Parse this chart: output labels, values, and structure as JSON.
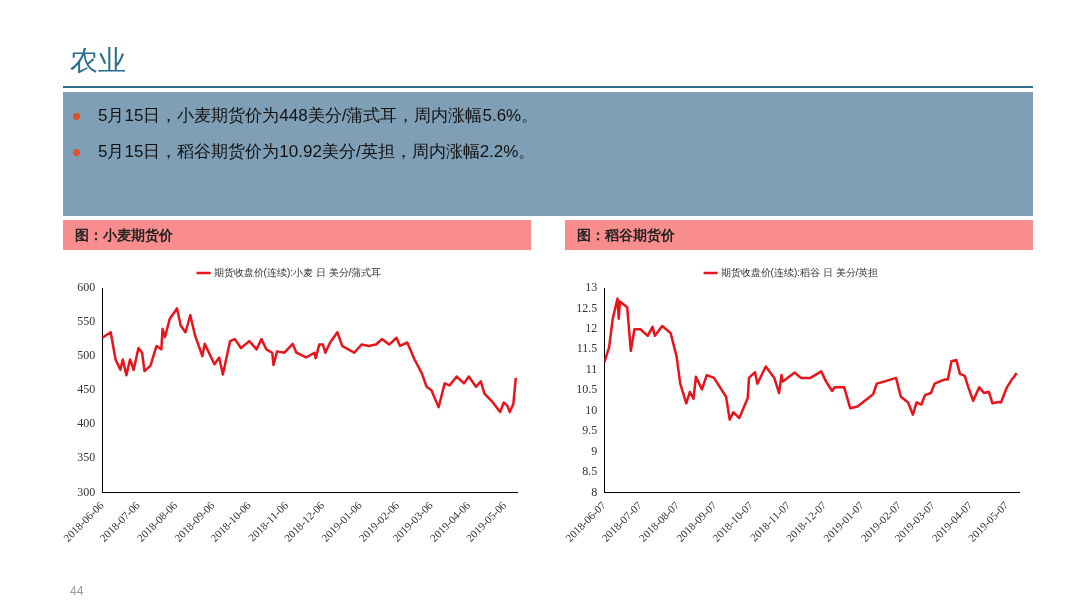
{
  "chart_data": [
    {
      "type": "other",
      "title": "农业",
      "annotations": [
        "5月15日，小麦期货价为448美分/蒲式耳，周内涨幅5.6%。",
        "5月15日，稻谷期货价为10.92美分/英担，周内涨幅2.2%。",
        "44"
      ]
    },
    {
      "type": "line",
      "title": "图：小麦期货价",
      "legend": "top",
      "grid": false,
      "xlim": [
        "2018-06-06",
        "2019-05-16"
      ],
      "xticks": [
        "2018-06-06",
        "2018-07-06",
        "2018-08-06",
        "2018-09-06",
        "2018-10-06",
        "2018-11-06",
        "2018-12-06",
        "2019-01-06",
        "2019-02-06",
        "2019-03-06",
        "2019-04-06",
        "2019-05-06"
      ],
      "ylim": [
        300,
        600
      ],
      "yticks": [
        300,
        350,
        400,
        450,
        500,
        550,
        600
      ],
      "series": [
        {
          "name": "期货收盘价(连续):小麦 日 美分/蒲式耳",
          "color": "#e8141c",
          "x": [
            "2018-06-06",
            "2018-06-13",
            "2018-06-17",
            "2018-06-21",
            "2018-06-23",
            "2018-06-26",
            "2018-06-29",
            "2018-07-02",
            "2018-07-06",
            "2018-07-09",
            "2018-07-11",
            "2018-07-16",
            "2018-07-21",
            "2018-07-25",
            "2018-07-26",
            "2018-07-28",
            "2018-08-01",
            "2018-08-07",
            "2018-08-10",
            "2018-08-14",
            "2018-08-18",
            "2018-08-22",
            "2018-08-28",
            "2018-08-30",
            "2018-09-07",
            "2018-09-11",
            "2018-09-14",
            "2018-09-20",
            "2018-09-24",
            "2018-09-29",
            "2018-10-06",
            "2018-10-12",
            "2018-10-16",
            "2018-10-20",
            "2018-10-25",
            "2018-10-26",
            "2018-10-29",
            "2018-11-04",
            "2018-11-11",
            "2018-11-14",
            "2018-11-22",
            "2018-11-29",
            "2018-11-30",
            "2018-12-03",
            "2018-12-06",
            "2018-12-08",
            "2018-12-12",
            "2018-12-18",
            "2018-12-22",
            "2019-01-01",
            "2019-01-07",
            "2019-01-13",
            "2019-01-19",
            "2019-01-24",
            "2019-01-30",
            "2019-02-05",
            "2019-02-08",
            "2019-02-14",
            "2019-02-20",
            "2019-02-26",
            "2019-03-02",
            "2019-03-06",
            "2019-03-12",
            "2019-03-17",
            "2019-03-21",
            "2019-03-27",
            "2019-04-02",
            "2019-04-06",
            "2019-04-12",
            "2019-04-16",
            "2019-04-19",
            "2019-04-26",
            "2019-05-02",
            "2019-05-05",
            "2019-05-08",
            "2019-05-10",
            "2019-05-13",
            "2019-05-15"
          ],
          "values": [
            527,
            535,
            495,
            480,
            495,
            472,
            495,
            480,
            512,
            505,
            478,
            486,
            515,
            510,
            540,
            528,
            555,
            570,
            545,
            535,
            560,
            530,
            500,
            518,
            488,
            498,
            473,
            522,
            525,
            512,
            522,
            510,
            525,
            510,
            505,
            487,
            507,
            505,
            518,
            505,
            498,
            505,
            497,
            517,
            517,
            505,
            520,
            535,
            515,
            505,
            517,
            515,
            517,
            525,
            517,
            527,
            515,
            520,
            495,
            475,
            455,
            450,
            425,
            460,
            457,
            470,
            460,
            470,
            455,
            463,
            445,
            432,
            418,
            432,
            427,
            418,
            430,
            468
          ]
        }
      ]
    },
    {
      "type": "line",
      "title": "图：稻谷期货价",
      "legend": "top",
      "grid": false,
      "xlim": [
        "2018-06-07",
        "2019-05-17"
      ],
      "xticks": [
        "2018-06-07",
        "2018-07-07",
        "2018-08-07",
        "2018-09-07",
        "2018-10-07",
        "2018-11-07",
        "2018-12-07",
        "2019-01-07",
        "2019-02-07",
        "2019-03-07",
        "2019-04-07",
        "2019-05-07"
      ],
      "ylim": [
        8,
        13
      ],
      "yticks": [
        8,
        8.5,
        9,
        9.5,
        10,
        10.5,
        11,
        11.5,
        12,
        12.5,
        13
      ],
      "series": [
        {
          "name": "期货收盘价(连续):稻谷 日 美分/英担",
          "color": "#e8141c",
          "x": [
            "2018-06-07",
            "2018-06-11",
            "2018-06-14",
            "2018-06-18",
            "2018-06-19",
            "2018-06-20",
            "2018-06-26",
            "2018-06-29",
            "2018-07-02",
            "2018-07-07",
            "2018-07-13",
            "2018-07-17",
            "2018-07-19",
            "2018-07-25",
            "2018-08-01",
            "2018-08-06",
            "2018-08-09",
            "2018-08-14",
            "2018-08-17",
            "2018-08-20",
            "2018-08-22",
            "2018-08-27",
            "2018-08-31",
            "2018-09-06",
            "2018-09-16",
            "2018-09-19",
            "2018-09-22",
            "2018-09-27",
            "2018-10-04",
            "2018-10-05",
            "2018-10-10",
            "2018-10-12",
            "2018-10-19",
            "2018-10-26",
            "2018-10-30",
            "2018-11-01",
            "2018-11-02",
            "2018-11-12",
            "2018-11-17",
            "2018-11-25",
            "2018-12-04",
            "2018-12-08",
            "2018-12-13",
            "2018-12-15",
            "2018-12-23",
            "2018-12-28",
            "2019-01-03",
            "2019-01-16",
            "2019-01-19",
            "2019-01-25",
            "2019-02-04",
            "2019-02-08",
            "2019-02-14",
            "2019-02-18",
            "2019-02-21",
            "2019-02-25",
            "2019-02-28",
            "2019-03-05",
            "2019-03-08",
            "2019-03-16",
            "2019-03-19",
            "2019-03-22",
            "2019-03-26",
            "2019-03-29",
            "2019-04-02",
            "2019-04-05",
            "2019-04-09",
            "2019-04-14",
            "2019-04-18",
            "2019-04-22",
            "2019-04-25",
            "2019-04-30",
            "2019-05-02",
            "2019-05-07",
            "2019-05-11",
            "2019-05-13",
            "2019-05-15"
          ],
          "values": [
            11.18,
            11.55,
            12.25,
            12.74,
            12.25,
            12.67,
            12.53,
            11.46,
            11.99,
            11.99,
            11.83,
            12.05,
            11.83,
            12.07,
            11.9,
            11.32,
            10.66,
            10.18,
            10.46,
            10.29,
            10.83,
            10.52,
            10.87,
            10.8,
            10.34,
            9.78,
            9.96,
            9.82,
            10.31,
            10.8,
            10.94,
            10.66,
            11.08,
            10.8,
            10.43,
            10.87,
            10.71,
            10.93,
            10.8,
            10.8,
            10.96,
            10.71,
            10.48,
            10.57,
            10.57,
            10.06,
            10.1,
            10.4,
            10.66,
            10.71,
            10.8,
            10.34,
            10.2,
            9.9,
            10.2,
            10.15,
            10.38,
            10.43,
            10.66,
            10.76,
            10.76,
            11.21,
            11.24,
            10.9,
            10.85,
            10.57,
            10.24,
            10.57,
            10.43,
            10.46,
            10.18,
            10.21,
            10.2,
            10.57,
            10.76,
            10.83,
            10.92
          ]
        }
      ]
    }
  ]
}
